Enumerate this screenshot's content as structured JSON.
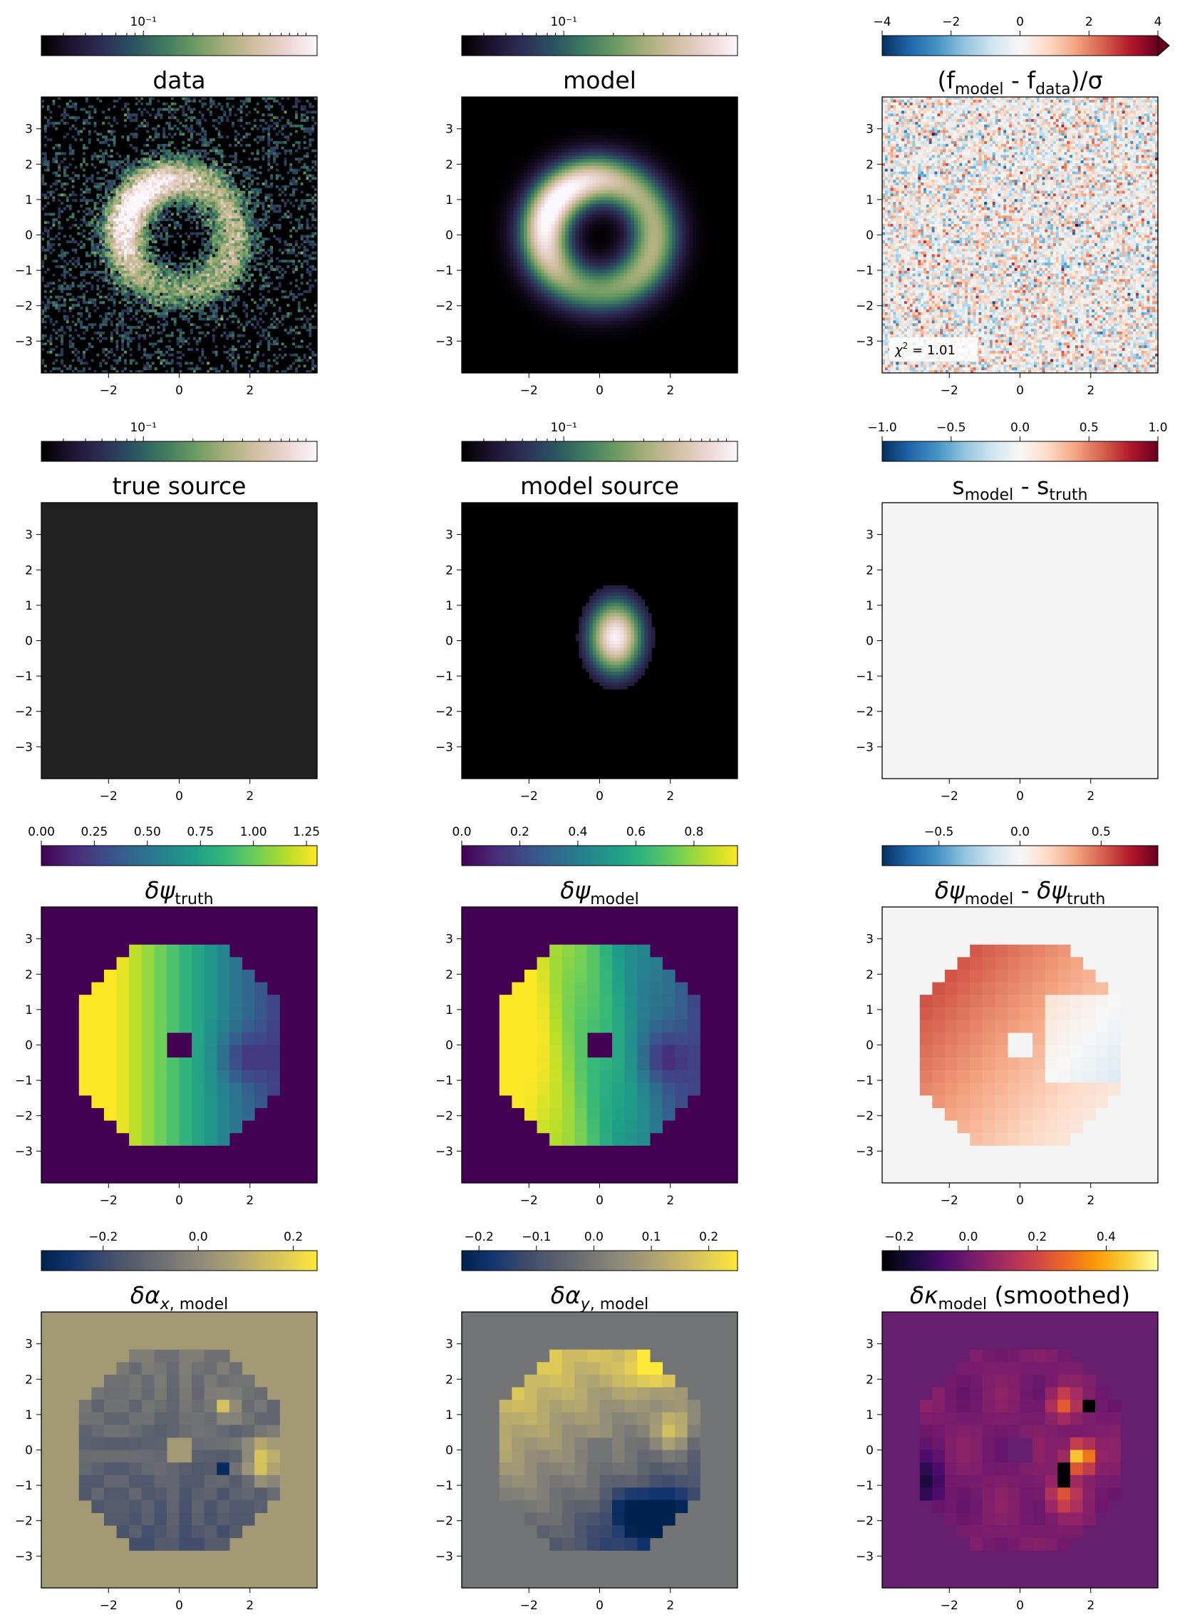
{
  "chart_data": {
    "type": "heatmap",
    "layout": {
      "rows": 4,
      "cols": 3
    },
    "panels": [
      {
        "title": "data",
        "title_parts": [
          "data"
        ],
        "cmap": "cubehelix",
        "colorbar_ticks": [
          "10⁻¹"
        ],
        "colorbar_scale": "log",
        "content": "ring",
        "style": "noisy",
        "xticks": [
          "−2",
          "0",
          "2"
        ],
        "yticks": [
          "3",
          "2",
          "1",
          "0",
          "−1",
          "−2",
          "−3"
        ],
        "xlim": [
          -3.9,
          3.9
        ],
        "ylim": [
          -3.9,
          3.9
        ]
      },
      {
        "title": "model",
        "title_parts": [
          "model"
        ],
        "cmap": "cubehelix",
        "colorbar_ticks": [
          "10⁻¹"
        ],
        "colorbar_scale": "log",
        "content": "ring",
        "style": "smooth",
        "xticks": [
          "−2",
          "0",
          "2"
        ],
        "yticks": [
          "3",
          "2",
          "1",
          "0",
          "−1",
          "−2",
          "−3"
        ],
        "xlim": [
          -3.9,
          3.9
        ],
        "ylim": [
          -3.9,
          3.9
        ]
      },
      {
        "title": "(f_model - f_data)/σ",
        "title_parts": [
          "(f",
          {
            "sub": "model"
          },
          " - f",
          {
            "sub": "data"
          },
          ")/σ"
        ],
        "cmap": "RdBu_r",
        "colorbar_ticks": [
          "−4",
          "−2",
          "0",
          "2",
          "4"
        ],
        "colorbar_range": [
          -4,
          4
        ],
        "colorbar_extend": "max",
        "content": "residual_noise",
        "annotation": "χ² = 1.01",
        "xticks": [
          "−2",
          "0",
          "2"
        ],
        "yticks": [
          "3",
          "2",
          "1",
          "0",
          "−1",
          "−2",
          "−3"
        ],
        "xlim": [
          -3.9,
          3.9
        ],
        "ylim": [
          -3.9,
          3.9
        ]
      },
      {
        "title": "true source",
        "title_parts": [
          "true source"
        ],
        "cmap": "cubehelix",
        "colorbar_ticks": [
          "10⁻¹"
        ],
        "colorbar_scale": "log",
        "content": "uniform",
        "fill": "#222222",
        "xticks": [
          "−2",
          "0",
          "2"
        ],
        "yticks": [
          "3",
          "2",
          "1",
          "0",
          "−1",
          "−2",
          "−3"
        ],
        "xlim": [
          -3.9,
          3.9
        ],
        "ylim": [
          -3.9,
          3.9
        ]
      },
      {
        "title": "model source",
        "title_parts": [
          "model source"
        ],
        "cmap": "cubehelix",
        "colorbar_ticks": [
          "10⁻¹"
        ],
        "colorbar_scale": "log",
        "content": "blob",
        "xticks": [
          "−2",
          "0",
          "2"
        ],
        "yticks": [
          "3",
          "2",
          "1",
          "0",
          "−1",
          "−2",
          "−3"
        ],
        "xlim": [
          -3.9,
          3.9
        ],
        "ylim": [
          -3.9,
          3.9
        ]
      },
      {
        "title": "s_model - s_truth",
        "title_parts": [
          "s",
          {
            "sub": "model"
          },
          " - s",
          {
            "sub": "truth"
          }
        ],
        "cmap": "RdBu_r",
        "colorbar_ticks": [
          "−1.0",
          "−0.5",
          "0.0",
          "0.5",
          "1.0"
        ],
        "colorbar_range": [
          -1.0,
          1.0
        ],
        "content": "uniform",
        "fill": "#f4f4f4",
        "xticks": [
          "−2",
          "0",
          "2"
        ],
        "yticks": [
          "3",
          "2",
          "1",
          "0",
          "−1",
          "−2",
          "−3"
        ],
        "xlim": [
          -3.9,
          3.9
        ],
        "ylim": [
          -3.9,
          3.9
        ]
      },
      {
        "title": "δψ_truth",
        "title_parts": [
          {
            "it": "δψ"
          },
          {
            "sub": "truth"
          }
        ],
        "cmap": "viridis",
        "colorbar_ticks": [
          "0.00",
          "0.25",
          "0.50",
          "0.75",
          "1.00",
          "1.25"
        ],
        "colorbar_range": [
          0,
          1.3
        ],
        "content": "psi_truth",
        "xticks": [
          "−2",
          "0",
          "2"
        ],
        "yticks": [
          "3",
          "2",
          "1",
          "0",
          "−1",
          "−2",
          "−3"
        ],
        "xlim": [
          -3.9,
          3.9
        ],
        "ylim": [
          -3.9,
          3.9
        ]
      },
      {
        "title": "δψ_model",
        "title_parts": [
          {
            "it": "δψ"
          },
          {
            "sub": "model"
          }
        ],
        "cmap": "viridis",
        "colorbar_ticks": [
          "0.0",
          "0.2",
          "0.4",
          "0.6",
          "0.8"
        ],
        "colorbar_range": [
          0,
          0.95
        ],
        "content": "psi_model",
        "xticks": [
          "−2",
          "0",
          "2"
        ],
        "yticks": [
          "3",
          "2",
          "1",
          "0",
          "−1",
          "−2",
          "−3"
        ],
        "xlim": [
          -3.9,
          3.9
        ],
        "ylim": [
          -3.9,
          3.9
        ]
      },
      {
        "title": "δψ_model - δψ_truth",
        "title_parts": [
          {
            "it": "δψ"
          },
          {
            "sub": "model"
          },
          " - ",
          {
            "it": "δψ"
          },
          {
            "sub": "truth"
          }
        ],
        "cmap": "RdBu_r",
        "colorbar_ticks": [
          "−0.5",
          "0.0",
          "0.5"
        ],
        "colorbar_range": [
          -0.85,
          0.85
        ],
        "content": "psi_diff",
        "xticks": [
          "−2",
          "0",
          "2"
        ],
        "yticks": [
          "3",
          "2",
          "1",
          "0",
          "−1",
          "−2",
          "−3"
        ],
        "xlim": [
          -3.9,
          3.9
        ],
        "ylim": [
          -3.9,
          3.9
        ]
      },
      {
        "title": "δα_x,model",
        "title_parts": [
          {
            "it": "δα"
          },
          {
            "sub": "x, model",
            "subit": "x"
          }
        ],
        "cmap": "cividis",
        "colorbar_ticks": [
          "−0.2",
          "0.0",
          "0.2"
        ],
        "colorbar_range": [
          -0.33,
          0.25
        ],
        "content": "alpha_x",
        "xticks": [
          "−2",
          "0",
          "2"
        ],
        "yticks": [
          "3",
          "2",
          "1",
          "0",
          "−1",
          "−2",
          "−3"
        ],
        "xlim": [
          -3.9,
          3.9
        ],
        "ylim": [
          -3.9,
          3.9
        ]
      },
      {
        "title": "δα_y,model",
        "title_parts": [
          {
            "it": "δα"
          },
          {
            "sub": "y, model",
            "subit": "y"
          }
        ],
        "cmap": "cividis",
        "colorbar_ticks": [
          "−0.2",
          "−0.1",
          "0.0",
          "0.1",
          "0.2"
        ],
        "colorbar_range": [
          -0.23,
          0.25
        ],
        "content": "alpha_y",
        "xticks": [
          "−2",
          "0",
          "2"
        ],
        "yticks": [
          "3",
          "2",
          "1",
          "0",
          "−1",
          "−2",
          "−3"
        ],
        "xlim": [
          -3.9,
          3.9
        ],
        "ylim": [
          -3.9,
          3.9
        ]
      },
      {
        "title": "δκ_model (smoothed)",
        "title_parts": [
          {
            "it": "δκ"
          },
          {
            "sub": "model"
          },
          " (smoothed)"
        ],
        "cmap": "inferno",
        "colorbar_ticks": [
          "−0.2",
          "0.0",
          "0.2",
          "0.4"
        ],
        "colorbar_range": [
          -0.25,
          0.55
        ],
        "content": "kappa",
        "xticks": [
          "−2",
          "0",
          "2"
        ],
        "yticks": [
          "3",
          "2",
          "1",
          "0",
          "−1",
          "−2",
          "−3"
        ],
        "xlim": [
          -3.9,
          3.9
        ],
        "ylim": [
          -3.9,
          3.9
        ]
      }
    ]
  }
}
